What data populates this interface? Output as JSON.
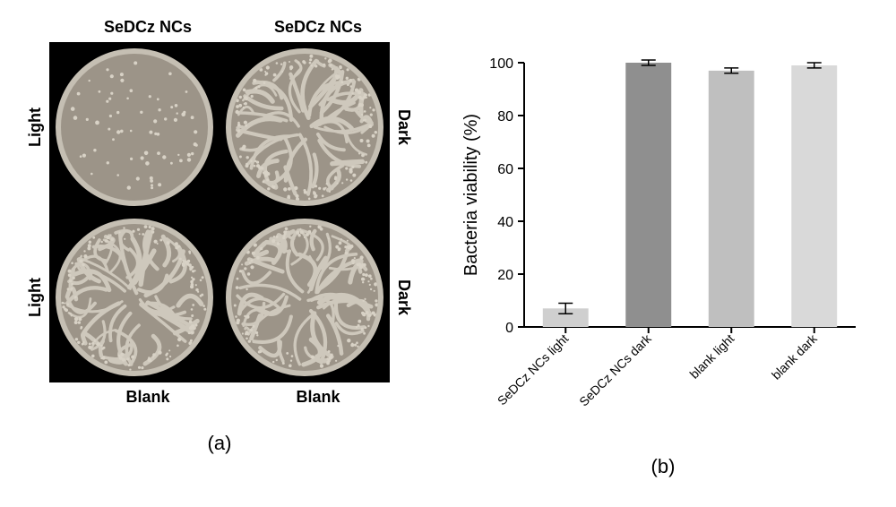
{
  "panel_a": {
    "col_headers": [
      "SeDCz NCs",
      "SeDCz NCs"
    ],
    "row_left_labels": [
      "Light",
      "Light"
    ],
    "row_right_labels": [
      "Dark",
      "Dark"
    ],
    "bottom_labels": [
      "Blank",
      "Blank"
    ],
    "dish": {
      "plate_fill": "#9c9488",
      "plate_rim": "#c5bfb3",
      "colony_fill": "#d8d2c6",
      "bg": "#000000",
      "cells": [
        {
          "density": "sparse"
        },
        {
          "density": "heavy"
        },
        {
          "density": "heavy"
        },
        {
          "density": "heavy"
        }
      ]
    },
    "sublabel": "(a)"
  },
  "panel_b": {
    "type": "bar",
    "ylabel": "Bacteria viability (%)",
    "categories": [
      "SeDCz NCs light",
      "SeDCz NCs dark",
      "blank light",
      "blank dark"
    ],
    "values": [
      7,
      100,
      97,
      99
    ],
    "errors": [
      2,
      1,
      1,
      1
    ],
    "bar_colors": [
      "#cfcfcf",
      "#8f8f8f",
      "#bfbfbf",
      "#d9d9d9"
    ],
    "ylim": [
      0,
      100
    ],
    "ytick_step": 20,
    "axis_color": "#000000",
    "tick_fontsize": 16,
    "label_fontsize": 20,
    "cat_fontsize": 14,
    "bar_width": 0.55,
    "background_color": "#ffffff",
    "sublabel": "(b)"
  }
}
